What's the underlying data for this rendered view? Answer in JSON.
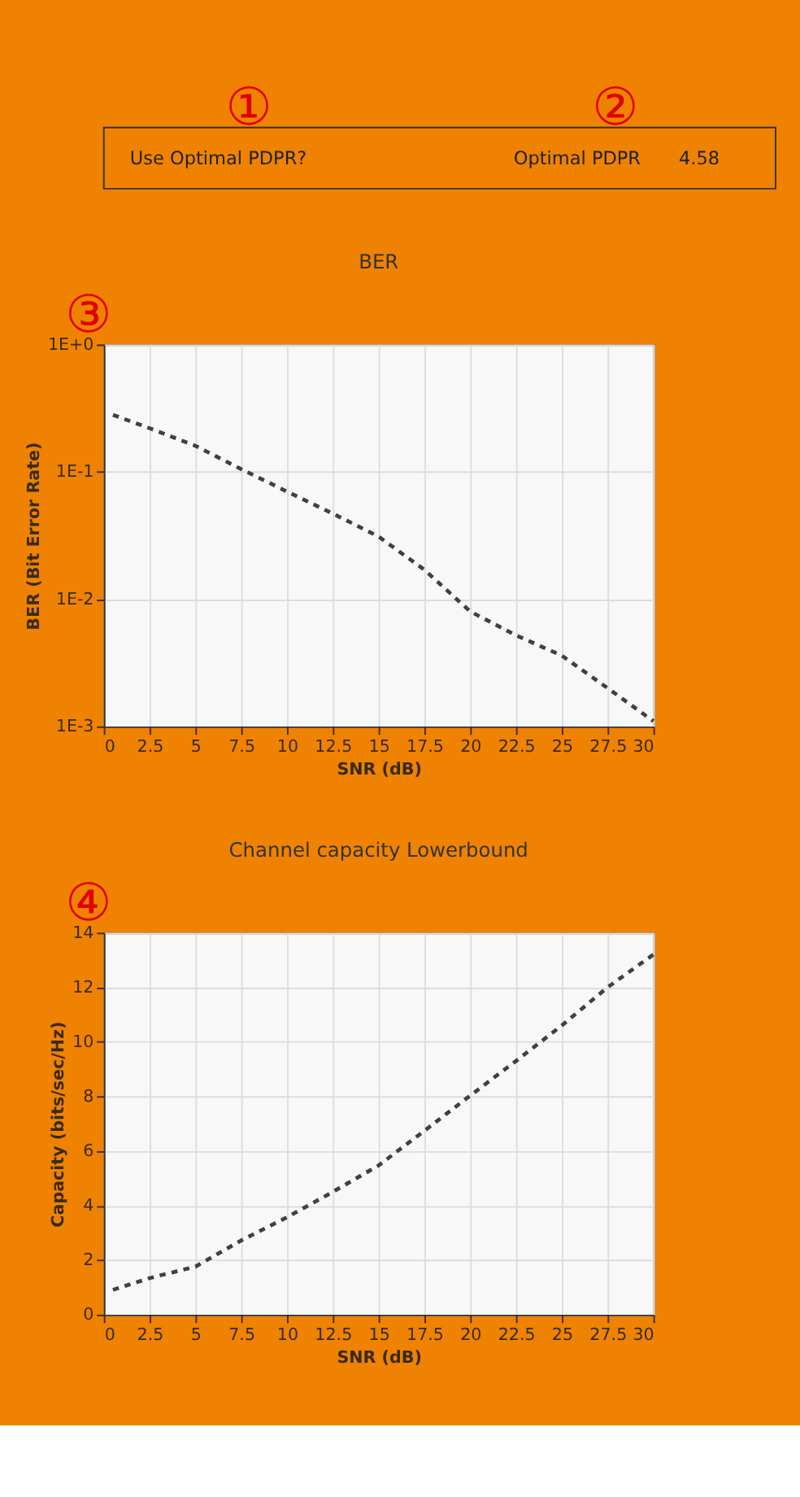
{
  "chart_data": [
    {
      "type": "other",
      "annotations": [
        "①",
        "Use Optimal PDPR?",
        "②",
        "Optimal PDPR",
        "4.58"
      ]
    },
    {
      "type": "line",
      "title": "BER",
      "annotations": [
        "③"
      ],
      "xlabel": "SNR (dB)",
      "ylabel": "BER (Bit Error Rate)",
      "log": "y",
      "grid": true,
      "marker": "none",
      "line_style": "dashed",
      "x": [
        0.5,
        2.5,
        5,
        7.5,
        10,
        12.5,
        15,
        17.5,
        20,
        22.5,
        25,
        27.5,
        30
      ],
      "series": [
        {
          "color": "#404040",
          "values": [
            0.28,
            0.22,
            0.16,
            0.105,
            0.07,
            0.047,
            0.031,
            0.017,
            0.008,
            0.0052,
            0.0036,
            0.002,
            0.0011
          ]
        }
      ],
      "xlim": [
        0,
        30
      ],
      "xticks": [
        0,
        2.5,
        5,
        7.5,
        10,
        12.5,
        15,
        17.5,
        20,
        22.5,
        25,
        27.5,
        30
      ],
      "ylim": [
        0.001,
        1
      ],
      "yticks": [
        {
          "value": 0.001,
          "label": "1E-3"
        },
        {
          "value": 0.01,
          "label": "1E-2"
        },
        {
          "value": 0.1,
          "label": "1E-1"
        },
        {
          "value": 1,
          "label": "1E+0"
        }
      ]
    },
    {
      "type": "line",
      "title": "Channel capacity Lowerbound",
      "annotations": [
        "④"
      ],
      "xlabel": "SNR (dB)",
      "ylabel": "Capacity (bits/sec/Hz)",
      "grid": true,
      "marker": "none",
      "line_style": "dashed",
      "x": [
        0.5,
        2.5,
        5,
        7.5,
        10,
        12.5,
        15,
        17.5,
        20,
        22.5,
        25,
        27.5,
        30
      ],
      "series": [
        {
          "color": "#404040",
          "values": [
            0.91,
            1.34,
            1.76,
            2.72,
            3.57,
            4.5,
            5.47,
            6.74,
            8.03,
            9.3,
            10.6,
            12.0,
            13.2
          ]
        }
      ],
      "xlim": [
        0,
        30
      ],
      "xticks": [
        0,
        2.5,
        5,
        7.5,
        10,
        12.5,
        15,
        17.5,
        20,
        22.5,
        25,
        27.5,
        30
      ],
      "ylim": [
        0,
        14
      ],
      "yticks": [
        0,
        2,
        4,
        6,
        8,
        10,
        12,
        14
      ]
    }
  ]
}
